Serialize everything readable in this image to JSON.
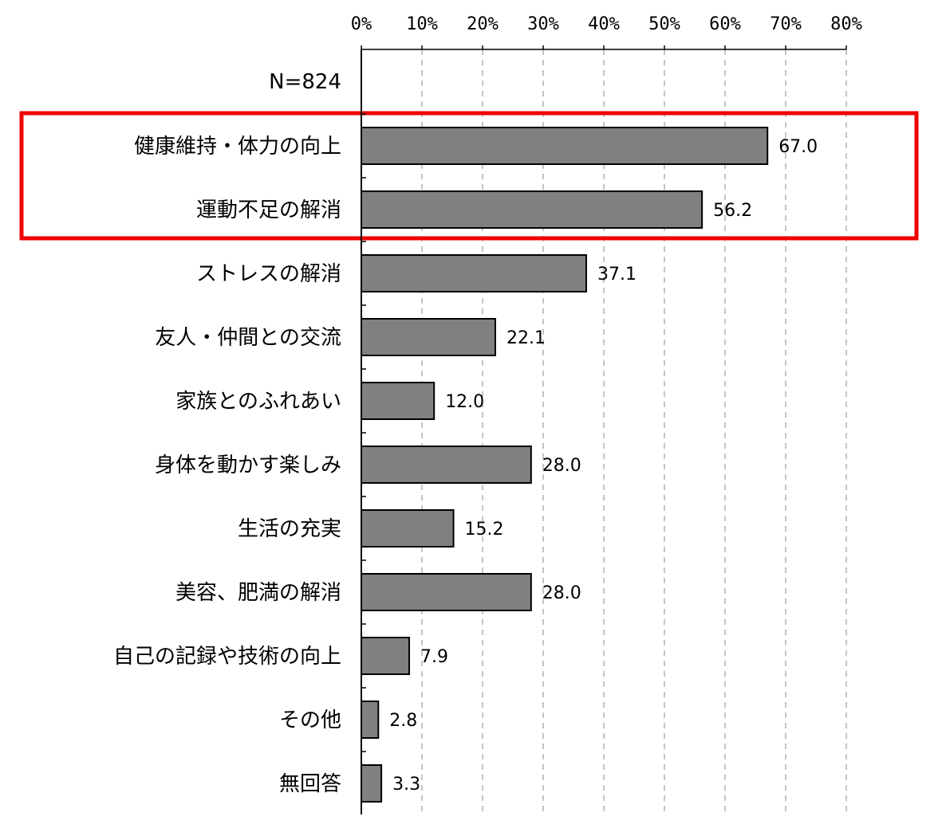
{
  "chart_data": {
    "type": "bar",
    "orientation": "horizontal",
    "sample_note": "N=824",
    "x_ticks": [
      "0%",
      "10%",
      "20%",
      "30%",
      "40%",
      "50%",
      "60%",
      "70%",
      "80%"
    ],
    "xlim": [
      0,
      80
    ],
    "grid": "vertical dashed",
    "categories": [
      "健康維持・体力の向上",
      "運動不足の解消",
      "ストレスの解消",
      "友人・仲間との交流",
      "家族とのふれあい",
      "身体を動かす楽しみ",
      "生活の充実",
      "美容、肥満の解消",
      "自己の記録や技術の向上",
      "その他",
      "無回答"
    ],
    "values": [
      67.0,
      56.2,
      37.1,
      22.1,
      12.0,
      28.0,
      15.2,
      28.0,
      7.9,
      2.8,
      3.3
    ],
    "value_labels": [
      "67.0",
      "56.2",
      "37.1",
      "22.1",
      "12.0",
      "28.0",
      "15.2",
      "28.0",
      "7.9",
      "2.8",
      "3.3"
    ],
    "highlight": {
      "categories": [
        "健康維持・体力の向上",
        "運動不足の解消"
      ],
      "color": "#ee0000"
    },
    "colors": {
      "bar_fill": "#808080",
      "bar_stroke": "#000000",
      "grid": "#b0b0b0"
    }
  }
}
